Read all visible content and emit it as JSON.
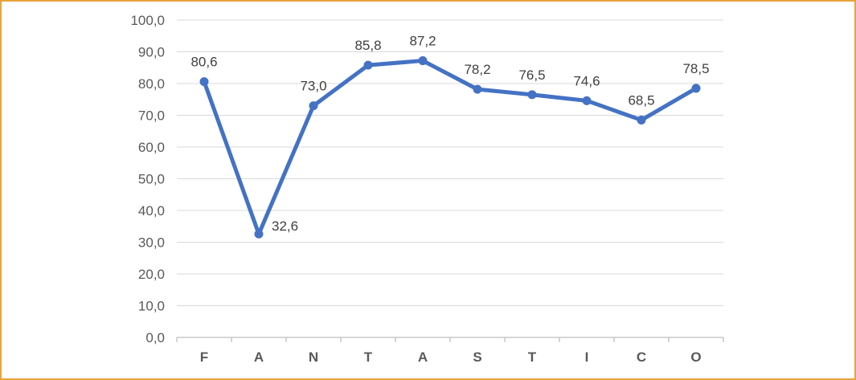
{
  "chart_data": {
    "type": "line",
    "title": "",
    "categories": [
      "F",
      "A",
      "N",
      "T",
      "A",
      "S",
      "T",
      "I",
      "C",
      "O"
    ],
    "series": [
      {
        "name": "",
        "values": [
          80.6,
          32.6,
          73.0,
          85.8,
          87.2,
          78.2,
          76.5,
          74.6,
          68.5,
          78.5
        ]
      }
    ],
    "data_labels": [
      "80,6",
      "32,6",
      "73,0",
      "85,8",
      "87,2",
      "78,2",
      "76,5",
      "74,6",
      "68,5",
      "78,5"
    ],
    "data_label_positions": [
      "above",
      "right",
      "above",
      "above",
      "above",
      "above",
      "above",
      "above",
      "above",
      "above"
    ],
    "y_tick_labels": [
      "100,0",
      "90,0",
      "80,0",
      "70,0",
      "60,0",
      "50,0",
      "40,0",
      "30,0",
      "20,0",
      "10,0",
      "0,0"
    ],
    "y_tick_values": [
      100,
      90,
      80,
      70,
      60,
      50,
      40,
      30,
      20,
      10,
      0
    ],
    "ylim": [
      0,
      100
    ],
    "xlabel": "",
    "ylabel": "",
    "grid": "horizontal",
    "legend": "none",
    "marker": "circle",
    "colors": {
      "line": "#4472C4",
      "marker": "#4472C4",
      "gridline": "#D9D9D9",
      "axis_line": "#BFBFBF",
      "tick_label": "#595959",
      "data_label": "#404040",
      "frame_border": "#E8A33C",
      "background": "#FFFFFF"
    }
  }
}
